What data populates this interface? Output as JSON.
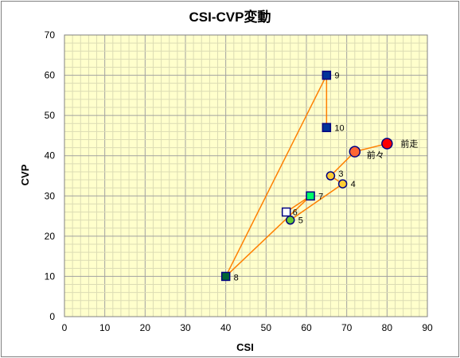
{
  "chart_data": {
    "type": "scatter",
    "title": "CSI-CVP変動",
    "xlabel": "CSI",
    "ylabel": "CVP",
    "xlim": [
      0,
      90
    ],
    "ylim": [
      0,
      70
    ],
    "xticks": [
      "0",
      "10",
      "20",
      "30",
      "40",
      "50",
      "60",
      "70",
      "80",
      "90"
    ],
    "yticks": [
      "0",
      "10",
      "20",
      "30",
      "40",
      "50",
      "60",
      "70"
    ],
    "grid": true,
    "colors": {
      "plot_bg": "#ffffcc",
      "grid": "#c0c0c0",
      "line": "#ff7f00",
      "navy": "#003399",
      "green": "#00cc33",
      "yellow": "#ffcc33",
      "red": "#ff0000",
      "orange_red": "#ff6633"
    },
    "points": [
      {
        "label": "前走",
        "x": 80,
        "y": 43,
        "marker": "circle-large",
        "fill": "#ff0000",
        "stroke": "#000080"
      },
      {
        "label": "前々",
        "x": 72,
        "y": 41,
        "marker": "circle-large",
        "fill": "#ff6633",
        "stroke": "#000080"
      },
      {
        "label": "3",
        "x": 66,
        "y": 35,
        "marker": "circle",
        "fill": "#ffcc33",
        "stroke": "#000080"
      },
      {
        "label": "4",
        "x": 69,
        "y": 33,
        "marker": "circle",
        "fill": "#ffcc33",
        "stroke": "#000080"
      },
      {
        "label": "5",
        "x": 56,
        "y": 24,
        "marker": "circle",
        "fill": "#66cc33",
        "stroke": "#000080"
      },
      {
        "label": "6",
        "x": 55,
        "y": 26,
        "marker": "square",
        "fill": "#ffffff",
        "stroke": "#000080"
      },
      {
        "label": "7",
        "x": 61,
        "y": 30,
        "marker": "square",
        "fill": "#00ff66",
        "stroke": "#000080"
      },
      {
        "label": "8",
        "x": 40,
        "y": 10,
        "marker": "square",
        "fill": "#006633",
        "stroke": "#000080"
      },
      {
        "label": "9",
        "x": 65,
        "y": 60,
        "marker": "square",
        "fill": "#003399",
        "stroke": "#000080"
      },
      {
        "label": "10",
        "x": 65,
        "y": 47,
        "marker": "square",
        "fill": "#003399",
        "stroke": "#000080"
      }
    ]
  }
}
